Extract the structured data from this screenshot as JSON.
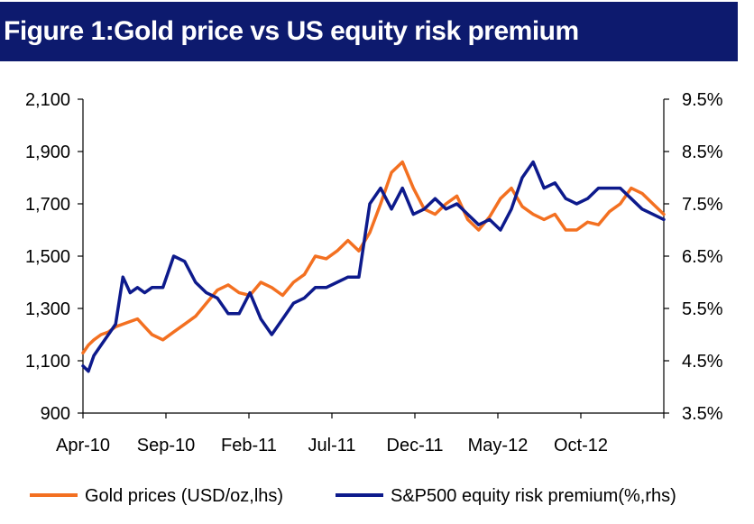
{
  "title": "Figure 1:Gold price vs US equity risk premium",
  "chart_data": {
    "type": "line",
    "x_labels": [
      "Apr-10",
      "Sep-10",
      "Feb-11",
      "Jul-11",
      "Dec-11",
      "May-12",
      "Oct-12"
    ],
    "left_axis": {
      "ticks": [
        "2,100",
        "1,900",
        "1,700",
        "1,500",
        "1,300",
        "1,100",
        "900"
      ],
      "min": 900,
      "max": 2100
    },
    "right_axis": {
      "ticks": [
        "9.5%",
        "8.5%",
        "7.5%",
        "6.5%",
        "5.5%",
        "4.5%",
        "3.5%"
      ],
      "min": 3.5,
      "max": 9.5
    },
    "series": [
      {
        "name": "Gold prices (USD/oz,lhs)",
        "axis": "left",
        "color": "#f37021",
        "x": [
          0,
          1.5,
          3,
          5,
          7,
          9,
          11,
          13,
          15,
          17,
          19,
          22,
          25,
          28,
          31,
          34,
          37,
          40,
          43,
          46,
          49,
          52,
          55,
          58,
          61,
          64,
          67,
          70,
          73,
          76,
          79,
          82,
          85,
          88,
          91,
          94,
          97,
          100,
          103,
          106,
          109,
          112,
          115,
          118,
          121,
          124,
          127,
          130,
          133,
          136,
          139,
          142,
          145,
          148,
          151,
          154,
          157,
          160
        ],
        "y": [
          1130,
          1160,
          1180,
          1200,
          1210,
          1230,
          1240,
          1250,
          1260,
          1230,
          1200,
          1180,
          1210,
          1240,
          1270,
          1320,
          1370,
          1390,
          1360,
          1350,
          1400,
          1380,
          1350,
          1400,
          1430,
          1500,
          1490,
          1520,
          1560,
          1520,
          1590,
          1700,
          1820,
          1860,
          1760,
          1680,
          1660,
          1700,
          1730,
          1640,
          1600,
          1650,
          1720,
          1760,
          1690,
          1660,
          1640,
          1660,
          1600,
          1600,
          1630,
          1620,
          1670,
          1700,
          1760,
          1740,
          1700,
          1660
        ]
      },
      {
        "name": "S&P500 equity risk premium(%,rhs)",
        "axis": "right",
        "color": "#0d1a8c",
        "x": [
          0,
          1.5,
          3,
          5,
          7,
          9,
          11,
          13,
          15,
          17,
          19,
          22,
          25,
          28,
          31,
          34,
          37,
          40,
          43,
          46,
          49,
          52,
          55,
          58,
          61,
          64,
          67,
          70,
          73,
          76,
          79,
          82,
          85,
          88,
          91,
          94,
          97,
          100,
          103,
          106,
          109,
          112,
          115,
          118,
          121,
          124,
          127,
          130,
          133,
          136,
          139,
          142,
          145,
          148,
          151,
          154,
          157,
          160
        ],
        "y": [
          4.4,
          4.3,
          4.6,
          4.8,
          5.0,
          5.2,
          6.1,
          5.8,
          5.9,
          5.8,
          5.9,
          5.9,
          6.5,
          6.4,
          6.0,
          5.8,
          5.7,
          5.4,
          5.4,
          5.8,
          5.3,
          5.0,
          5.3,
          5.6,
          5.7,
          5.9,
          5.9,
          6.0,
          6.1,
          6.1,
          7.5,
          7.8,
          7.4,
          7.8,
          7.3,
          7.4,
          7.6,
          7.4,
          7.5,
          7.3,
          7.1,
          7.2,
          7.0,
          7.4,
          8.0,
          8.3,
          7.8,
          7.9,
          7.6,
          7.5,
          7.6,
          7.8,
          7.8,
          7.8,
          7.6,
          7.4,
          7.3,
          7.2
        ]
      }
    ]
  },
  "legend": {
    "gold": "Gold prices (USD/oz,lhs)",
    "erp": "S&P500 equity risk premium(%,rhs)"
  }
}
